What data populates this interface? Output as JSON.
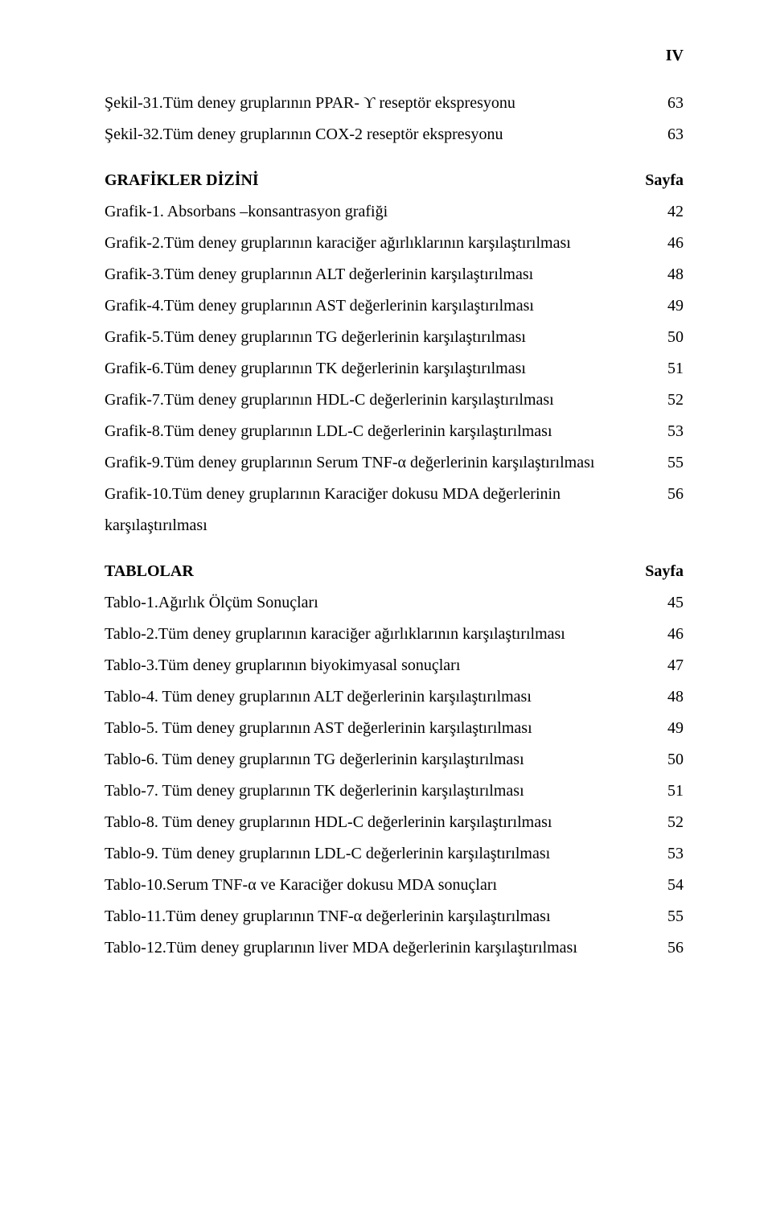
{
  "page_number": "IV",
  "sekil_entries": [
    {
      "label": "Şekil-31.Tüm deney gruplarının PPAR- ϒ  reseptör ekspresyonu",
      "page": "63"
    },
    {
      "label": "Şekil-32.Tüm deney gruplarının COX-2 reseptör ekspresyonu",
      "page": "63"
    }
  ],
  "grafikler_header": {
    "title": "GRAFİKLER DİZİNİ",
    "page_label": "Sayfa"
  },
  "grafikler_entries": [
    {
      "label": "Grafik-1. Absorbans –konsantrasyon grafiği",
      "page": "42"
    },
    {
      "label": "Grafik-2.Tüm deney gruplarının karaciğer ağırlıklarının karşılaştırılması",
      "page": "46"
    },
    {
      "label": "Grafik-3.Tüm deney gruplarının ALT değerlerinin karşılaştırılması",
      "page": "48"
    },
    {
      "label": "Grafik-4.Tüm deney gruplarının AST değerlerinin karşılaştırılması",
      "page": "49"
    },
    {
      "label": "Grafik-5.Tüm deney gruplarının TG değerlerinin karşılaştırılması",
      "page": "50"
    },
    {
      "label": "Grafik-6.Tüm deney gruplarının TK değerlerinin karşılaştırılması",
      "page": "51"
    },
    {
      "label": "Grafik-7.Tüm deney gruplarının HDL-C değerlerinin karşılaştırılması",
      "page": "52"
    },
    {
      "label": "Grafik-8.Tüm deney gruplarının LDL-C değerlerinin karşılaştırılması",
      "page": "53"
    },
    {
      "label": "Grafik-9.Tüm deney gruplarının Serum TNF-α değerlerinin karşılaştırılması",
      "page": "55"
    },
    {
      "label": "Grafik-10.Tüm deney gruplarının Karaciğer dokusu MDA değerlerinin karşılaştırılması",
      "page": "56"
    }
  ],
  "tablolar_header": {
    "title": "TABLOLAR",
    "page_label": "Sayfa"
  },
  "tablolar_entries": [
    {
      "label": "Tablo-1.Ağırlık Ölçüm Sonuçları",
      "page": "45"
    },
    {
      "label": "Tablo-2.Tüm deney gruplarının karaciğer ağırlıklarının karşılaştırılması",
      "page": "46"
    },
    {
      "label": "Tablo-3.Tüm deney gruplarının biyokimyasal sonuçları",
      "page": "47"
    },
    {
      "label": "Tablo-4. Tüm deney gruplarının ALT değerlerinin karşılaştırılması",
      "page": "48"
    },
    {
      "label": "Tablo-5. Tüm deney gruplarının AST değerlerinin karşılaştırılması",
      "page": "49"
    },
    {
      "label": "Tablo-6. Tüm deney gruplarının TG değerlerinin karşılaştırılması",
      "page": "50"
    },
    {
      "label": "Tablo-7. Tüm deney gruplarının TK değerlerinin karşılaştırılması",
      "page": "51"
    },
    {
      "label": "Tablo-8. Tüm deney gruplarının HDL-C değerlerinin karşılaştırılması",
      "page": "52"
    },
    {
      "label": "Tablo-9. Tüm deney gruplarının LDL-C değerlerinin karşılaştırılması",
      "page": "53"
    },
    {
      "label": "Tablo-10.Serum TNF-α  ve Karaciğer dokusu MDA sonuçları",
      "page": "54"
    },
    {
      "label": "Tablo-11.Tüm deney gruplarının TNF-α değerlerinin karşılaştırılması",
      "page": "55"
    },
    {
      "label": "Tablo-12.Tüm deney gruplarının liver MDA değerlerinin karşılaştırılması",
      "page": "56"
    }
  ]
}
